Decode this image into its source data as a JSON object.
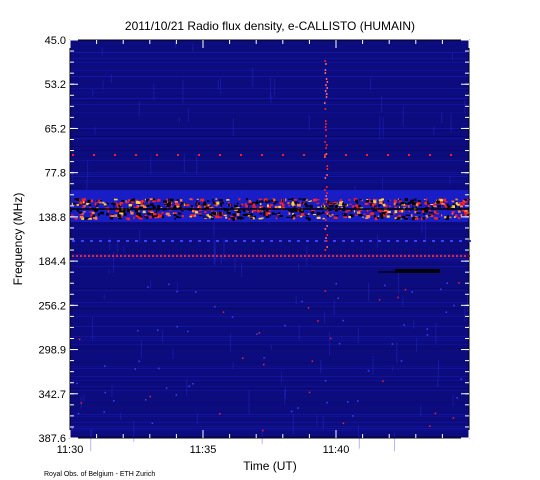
{
  "chart_data": {
    "type": "heatmap",
    "title": "2011/10/21  Radio flux density, e-CALLISTO (HUMAIN)",
    "xlabel": "Time (UT)",
    "ylabel": "Frequency (MHz)",
    "footer": "Royal Obs. of Belgium - ETH Zurich",
    "x_ticks": [
      {
        "label": "11:30",
        "minutes": 0
      },
      {
        "label": "11:35",
        "minutes": 5
      },
      {
        "label": "11:40",
        "minutes": 10
      }
    ],
    "x_range_minutes": [
      0,
      15
    ],
    "y_ticks": [
      "45.0",
      "53.2",
      "65.2",
      "77.8",
      "138.8",
      "184.4",
      "256.2",
      "298.9",
      "342.7",
      "387.6"
    ],
    "y_range_mhz": [
      45.0,
      387.6
    ],
    "colormap": {
      "background": "#0c0c7e",
      "low": "#1a20d0",
      "mid": "#ff2020",
      "high": "#ffd040",
      "dark": "#000000"
    }
  }
}
